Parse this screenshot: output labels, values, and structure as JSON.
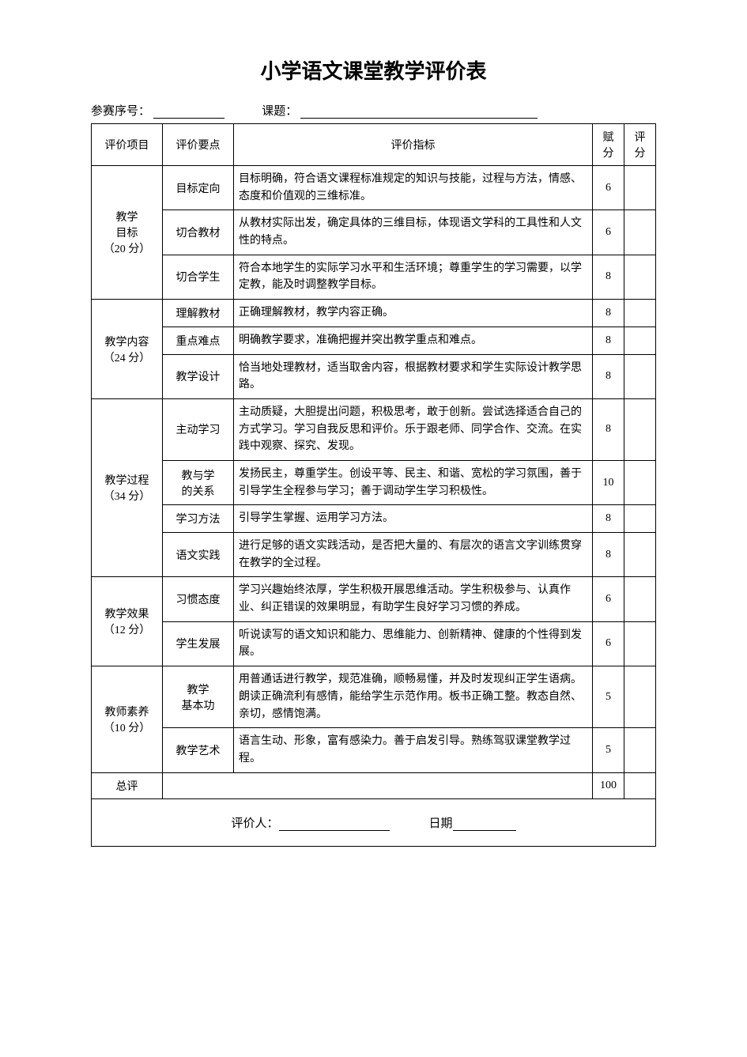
{
  "title": "小学语文课堂教学评价表",
  "form": {
    "seq_label": "参赛序号：",
    "topic_label": "课题："
  },
  "header": {
    "proj": "评价项目",
    "point": "评价要点",
    "indicator": "评价指标",
    "fu": "赋分",
    "pf": "评分"
  },
  "sections": [
    {
      "name": "教学\n目标\n（20 分）",
      "rows": [
        {
          "point": "目标定向",
          "indicator": "目标明确，符合语文课程标准规定的知识与技能，过程与方法，情感、态度和价值观的三维标准。",
          "score": "6"
        },
        {
          "point": "切合教材",
          "indicator": "从教材实际出发，确定具体的三维目标，体现语文学科的工具性和人文性的特点。",
          "score": "6"
        },
        {
          "point": "切合学生",
          "indicator": "符合本地学生的实际学习水平和生活环境；尊重学生的学习需要，以学定教，能及时调整教学目标。",
          "score": "8"
        }
      ]
    },
    {
      "name": "教学内容\n（24 分）",
      "rows": [
        {
          "point": "理解教材",
          "indicator": "正确理解教材，教学内容正确。",
          "score": "8"
        },
        {
          "point": "重点难点",
          "indicator": "明确教学要求，准确把握并突出教学重点和难点。",
          "score": "8"
        },
        {
          "point": "教学设计",
          "indicator": "恰当地处理教材，适当取舍内容，根据教材要求和学生实际设计教学思路。",
          "score": "8"
        }
      ]
    },
    {
      "name": "教学过程\n（34 分）",
      "rows": [
        {
          "point": "主动学习",
          "indicator": "主动质疑，大胆提出问题，积极思考，敢于创新。尝试选择适合自己的方式学习。学习自我反思和评价。乐于跟老师、同学合作、交流。在实践中观察、探究、发现。",
          "score": "8"
        },
        {
          "point": "教与学\n的关系",
          "indicator": "发扬民主，尊重学生。创设平等、民主、和谐、宽松的学习氛围，善于引导学生全程参与学习；善于调动学生学习积极性。",
          "score": "10"
        },
        {
          "point": "学习方法",
          "indicator": "引导学生掌握、运用学习方法。",
          "score": "8"
        },
        {
          "point": "语文实践",
          "indicator": "进行足够的语文实践活动，是否把大量的、有层次的语言文字训练贯穿在教学的全过程。",
          "score": "8"
        }
      ]
    },
    {
      "name": "教学效果\n（12 分）",
      "rows": [
        {
          "point": "习惯态度",
          "indicator": "学习兴趣始终浓厚，学生积极开展思维活动。学生积极参与、认真作业、纠正错误的效果明显，有助学生良好学习习惯的养成。",
          "score": "6"
        },
        {
          "point": "学生发展",
          "indicator": "听说读写的语文知识和能力、思维能力、创新精神、健康的个性得到发展。",
          "score": "6"
        }
      ]
    },
    {
      "name": "教师素养\n（10 分）",
      "rows": [
        {
          "point": "教学\n基本功",
          "indicator": "用普通话进行教学，规范准确，顺畅易懂，并及时发现纠正学生语病。朗读正确流利有感情，能给学生示范作用。板书正确工整。教态自然、亲切，感情饱满。",
          "score": "5"
        },
        {
          "point": "教学艺术",
          "indicator": "语言生动、形象，富有感染力。善于启发引导。熟练驾驭课堂教学过程。",
          "score": "5"
        }
      ]
    }
  ],
  "total": {
    "label": "总评",
    "score": "100"
  },
  "footer": {
    "evaluator_label": "评价人：",
    "date_label": "日期"
  }
}
